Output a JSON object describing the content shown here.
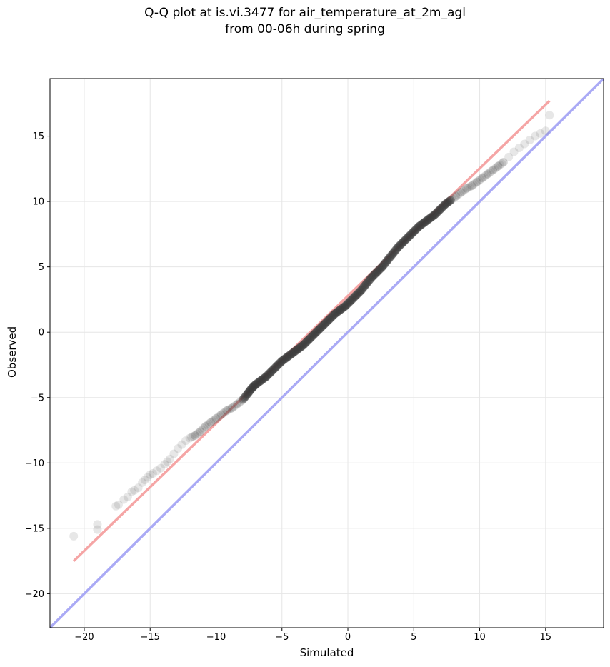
{
  "chart_data": {
    "type": "scatter",
    "title": "Q-Q plot at is.vi.3477 for air_temperature_at_2m_agl",
    "subtitle": "from 00-06h during spring",
    "xlabel": "Simulated",
    "ylabel": "Observed",
    "xlim": [
      -22.6,
      19.4
    ],
    "ylim": [
      -22.6,
      19.4
    ],
    "xticks": [
      -20,
      -15,
      -10,
      -5,
      0,
      5,
      10,
      15
    ],
    "yticks": [
      -20,
      -15,
      -10,
      -5,
      0,
      5,
      10,
      15
    ],
    "xtick_labels": [
      "−20",
      "−15",
      "−10",
      "−5",
      "0",
      "5",
      "10",
      "15"
    ],
    "ytick_labels": [
      "−20",
      "−15",
      "−10",
      "−5",
      "0",
      "5",
      "10",
      "15"
    ],
    "grid": true,
    "reference_lines": [
      {
        "kind": "identity",
        "color": "#aaaaf5",
        "from": [
          -22.6,
          -22.6
        ],
        "to": [
          19.4,
          19.4
        ]
      },
      {
        "kind": "fit",
        "color": "#f5a5a5",
        "from": [
          -20.8,
          -17.5
        ],
        "to": [
          15.3,
          17.7
        ]
      }
    ],
    "series": [
      {
        "marker_color": "#3a3a3a",
        "x": [
          -20.8,
          -19.0,
          -19.0,
          -17.6,
          -17.4,
          -17.0,
          -16.7,
          -16.4,
          -16.2,
          -15.9,
          -15.6,
          -15.4,
          -15.2,
          -15.0,
          -14.8,
          -14.5,
          -14.2,
          -13.9,
          -13.7,
          -13.5,
          -13.2,
          -12.9,
          -12.6,
          -12.3,
          -12.0,
          -11.6,
          -11.2,
          -10.8,
          -10.4,
          -10.0,
          -9.6,
          -9.2,
          -8.8,
          -8.4,
          -8.0,
          -7.6,
          -7.3,
          -7.0,
          -6.6,
          -6.2,
          -5.8,
          -5.4,
          -5.0,
          -4.6,
          -4.2,
          -3.8,
          -3.4,
          -3.0,
          -2.6,
          -2.2,
          -1.8,
          -1.4,
          -1.0,
          -0.6,
          -0.2,
          0.2,
          0.6,
          1.0,
          1.4,
          1.8,
          2.2,
          2.6,
          3.0,
          3.4,
          3.8,
          4.2,
          4.6,
          5.0,
          5.4,
          5.8,
          6.2,
          6.6,
          7.0,
          7.4,
          7.8,
          8.2,
          8.6,
          9.0,
          9.4,
          9.8,
          10.2,
          10.6,
          11.0,
          11.4,
          11.8,
          12.2,
          12.6,
          13.0,
          13.4,
          13.8,
          14.2,
          14.6,
          15.0,
          15.3
        ],
        "y": [
          -15.6,
          -15.1,
          -14.7,
          -13.3,
          -13.2,
          -12.8,
          -12.6,
          -12.2,
          -12.1,
          -11.9,
          -11.5,
          -11.3,
          -11.1,
          -10.9,
          -10.8,
          -10.6,
          -10.4,
          -10.1,
          -9.9,
          -9.7,
          -9.3,
          -8.9,
          -8.6,
          -8.3,
          -8.1,
          -7.9,
          -7.6,
          -7.2,
          -6.9,
          -6.6,
          -6.3,
          -6.0,
          -5.8,
          -5.5,
          -5.2,
          -4.7,
          -4.3,
          -4.0,
          -3.7,
          -3.4,
          -3.0,
          -2.6,
          -2.2,
          -1.9,
          -1.6,
          -1.3,
          -1.0,
          -0.6,
          -0.2,
          0.2,
          0.6,
          1.0,
          1.4,
          1.7,
          2.0,
          2.4,
          2.8,
          3.2,
          3.7,
          4.2,
          4.6,
          5.0,
          5.5,
          6.0,
          6.5,
          6.9,
          7.3,
          7.7,
          8.1,
          8.4,
          8.7,
          9.0,
          9.4,
          9.8,
          10.1,
          10.4,
          10.7,
          11.0,
          11.2,
          11.5,
          11.8,
          12.1,
          12.4,
          12.7,
          13.0,
          13.4,
          13.8,
          14.1,
          14.4,
          14.7,
          15.0,
          15.2,
          15.4,
          16.6
        ]
      }
    ]
  }
}
